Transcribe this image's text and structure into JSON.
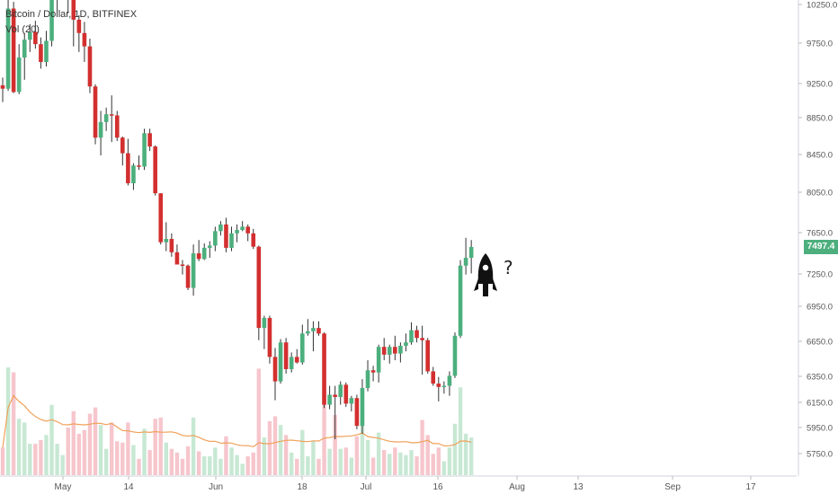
{
  "legend": {
    "symbol": "Bitcoin / Dollar, 1D, BITFINEX",
    "indicator": "Vol (20)"
  },
  "last_price_label": "7497.4",
  "annotation": {
    "rocket_icon": "rocket-icon",
    "text": "?"
  },
  "colors": {
    "up": "#4caf7d",
    "down": "#d32f2f",
    "vol_up": "#c7e8d3",
    "vol_down": "#f6c6cc",
    "vol_ma": "#f0a15a",
    "axis_text": "#555555",
    "price_tag": "#4caf7d"
  },
  "chart_data": {
    "type": "candlestick",
    "title": "Bitcoin / Dollar, 1D, BITFINEX",
    "y_axis_ticks": [
      "10250.0",
      "9750.0",
      "9250.0",
      "8850.0",
      "8450.0",
      "8050.0",
      "7650.0",
      "7250.0",
      "6950.0",
      "6650.0",
      "6350.0",
      "6150.0",
      "5950.0",
      "5750.0"
    ],
    "x_axis_ticks": [
      "May",
      "14",
      "Jun",
      "18",
      "Jul",
      "16",
      "Aug",
      "13",
      "Sep",
      "17"
    ],
    "last_price": 7497.4,
    "volume_indicator": "Vol (20)",
    "candles": [
      {
        "date": "Apr 24",
        "open": 8950,
        "high": 9020,
        "low": 8800,
        "close": 8920
      },
      {
        "date": "Apr 25",
        "open": 8920,
        "high": 9760,
        "low": 8900,
        "close": 9640
      },
      {
        "date": "Apr 26",
        "open": 9640,
        "high": 9700,
        "low": 8880,
        "close": 8890
      },
      {
        "date": "Apr 27",
        "open": 8890,
        "high": 9320,
        "low": 8870,
        "close": 9200
      },
      {
        "date": "Apr 28",
        "open": 9200,
        "high": 9420,
        "low": 9000,
        "close": 9360
      },
      {
        "date": "Apr 29",
        "open": 9360,
        "high": 9500,
        "low": 9250,
        "close": 9430
      },
      {
        "date": "Apr 30",
        "open": 9430,
        "high": 9530,
        "low": 9280,
        "close": 9320
      },
      {
        "date": "May 1",
        "open": 9320,
        "high": 9380,
        "low": 9100,
        "close": 9160
      },
      {
        "date": "May 2",
        "open": 9160,
        "high": 9440,
        "low": 9120,
        "close": 9350
      },
      {
        "date": "May 3",
        "open": 9350,
        "high": 9860,
        "low": 9300,
        "close": 9760
      },
      {
        "date": "May 4",
        "open": 9760,
        "high": 9870,
        "low": 9620,
        "close": 9830
      },
      {
        "date": "May 5",
        "open": 9830,
        "high": 9960,
        "low": 9800,
        "close": 9950
      },
      {
        "date": "May 6",
        "open": 9950,
        "high": 9980,
        "low": 9600,
        "close": 9800
      },
      {
        "date": "May 7",
        "open": 9800,
        "high": 9810,
        "low": 9300,
        "close": 9540
      },
      {
        "date": "May 8",
        "open": 9540,
        "high": 9580,
        "low": 9250,
        "close": 9420
      },
      {
        "date": "May 9",
        "open": 9420,
        "high": 9520,
        "low": 9160,
        "close": 9300
      },
      {
        "date": "May 10",
        "open": 9300,
        "high": 9370,
        "low": 8880,
        "close": 8940
      },
      {
        "date": "May 11",
        "open": 8940,
        "high": 8960,
        "low": 8420,
        "close": 8480
      },
      {
        "date": "May 12",
        "open": 8480,
        "high": 8720,
        "low": 8320,
        "close": 8620
      },
      {
        "date": "May 13",
        "open": 8620,
        "high": 8750,
        "low": 8540,
        "close": 8690
      },
      {
        "date": "May 14",
        "open": 8690,
        "high": 8860,
        "low": 8440,
        "close": 8680
      },
      {
        "date": "May 15",
        "open": 8680,
        "high": 8720,
        "low": 8450,
        "close": 8480
      },
      {
        "date": "May 16",
        "open": 8480,
        "high": 8490,
        "low": 8230,
        "close": 8340
      },
      {
        "date": "May 17",
        "open": 8340,
        "high": 8470,
        "low": 8050,
        "close": 8070
      },
      {
        "date": "May 18",
        "open": 8070,
        "high": 8250,
        "low": 8010,
        "close": 8230
      },
      {
        "date": "May 19",
        "open": 8230,
        "high": 8320,
        "low": 8190,
        "close": 8220
      },
      {
        "date": "May 20",
        "open": 8220,
        "high": 8560,
        "low": 8190,
        "close": 8520
      },
      {
        "date": "May 21",
        "open": 8520,
        "high": 8560,
        "low": 8360,
        "close": 8400
      },
      {
        "date": "May 22",
        "open": 8400,
        "high": 8410,
        "low": 7960,
        "close": 7980
      },
      {
        "date": "May 23",
        "open": 7980,
        "high": 7980,
        "low": 7520,
        "close": 7540
      },
      {
        "date": "May 24",
        "open": 7540,
        "high": 7720,
        "low": 7460,
        "close": 7570
      },
      {
        "date": "May 25",
        "open": 7570,
        "high": 7620,
        "low": 7410,
        "close": 7450
      },
      {
        "date": "May 26",
        "open": 7450,
        "high": 7520,
        "low": 7340,
        "close": 7340
      },
      {
        "date": "May 27",
        "open": 7340,
        "high": 7380,
        "low": 7250,
        "close": 7330
      },
      {
        "date": "May 28",
        "open": 7330,
        "high": 7340,
        "low": 7110,
        "close": 7130
      },
      {
        "date": "May 29",
        "open": 7130,
        "high": 7520,
        "low": 7060,
        "close": 7440
      },
      {
        "date": "May 30",
        "open": 7440,
        "high": 7560,
        "low": 7370,
        "close": 7390
      },
      {
        "date": "May 31",
        "open": 7390,
        "high": 7530,
        "low": 7380,
        "close": 7490
      },
      {
        "date": "Jun 1",
        "open": 7490,
        "high": 7550,
        "low": 7400,
        "close": 7510
      },
      {
        "date": "Jun 2",
        "open": 7510,
        "high": 7680,
        "low": 7460,
        "close": 7640
      },
      {
        "date": "Jun 3",
        "open": 7640,
        "high": 7730,
        "low": 7600,
        "close": 7700
      },
      {
        "date": "Jun 4",
        "open": 7700,
        "high": 7760,
        "low": 7450,
        "close": 7490
      },
      {
        "date": "Jun 5",
        "open": 7490,
        "high": 7680,
        "low": 7460,
        "close": 7620
      },
      {
        "date": "Jun 6",
        "open": 7620,
        "high": 7700,
        "low": 7540,
        "close": 7650
      },
      {
        "date": "Jun 7",
        "open": 7650,
        "high": 7730,
        "low": 7640,
        "close": 7680
      },
      {
        "date": "Jun 8",
        "open": 7680,
        "high": 7700,
        "low": 7550,
        "close": 7620
      },
      {
        "date": "Jun 9",
        "open": 7620,
        "high": 7660,
        "low": 7480,
        "close": 7500
      },
      {
        "date": "Jun 10",
        "open": 7500,
        "high": 7510,
        "low": 6660,
        "close": 6770
      },
      {
        "date": "Jun 11",
        "open": 6770,
        "high": 6880,
        "low": 6580,
        "close": 6860
      },
      {
        "date": "Jun 12",
        "open": 6860,
        "high": 6880,
        "low": 6450,
        "close": 6510
      },
      {
        "date": "Jun 13",
        "open": 6510,
        "high": 6590,
        "low": 6120,
        "close": 6290
      },
      {
        "date": "Jun 14",
        "open": 6290,
        "high": 6670,
        "low": 6270,
        "close": 6640
      },
      {
        "date": "Jun 15",
        "open": 6640,
        "high": 6680,
        "low": 6360,
        "close": 6400
      },
      {
        "date": "Jun 16",
        "open": 6400,
        "high": 6550,
        "low": 6370,
        "close": 6510
      },
      {
        "date": "Jun 17",
        "open": 6510,
        "high": 6580,
        "low": 6450,
        "close": 6460
      },
      {
        "date": "Jun 18",
        "open": 6460,
        "high": 6800,
        "low": 6440,
        "close": 6720
      },
      {
        "date": "Jun 19",
        "open": 6720,
        "high": 6850,
        "low": 6700,
        "close": 6740
      },
      {
        "date": "Jun 20",
        "open": 6740,
        "high": 6830,
        "low": 6560,
        "close": 6770
      },
      {
        "date": "Jun 21",
        "open": 6770,
        "high": 6830,
        "low": 6700,
        "close": 6720
      },
      {
        "date": "Jun 22",
        "open": 6720,
        "high": 6730,
        "low": 6050,
        "close": 6080
      },
      {
        "date": "Jun 23",
        "open": 6080,
        "high": 6250,
        "low": 6040,
        "close": 6170
      },
      {
        "date": "Jun 24",
        "open": 6170,
        "high": 6250,
        "low": 5770,
        "close": 6150
      },
      {
        "date": "Jun 25",
        "open": 6150,
        "high": 6290,
        "low": 6080,
        "close": 6260
      },
      {
        "date": "Jun 26",
        "open": 6260,
        "high": 6280,
        "low": 6060,
        "close": 6090
      },
      {
        "date": "Jun 27",
        "open": 6090,
        "high": 6160,
        "low": 6020,
        "close": 6140
      },
      {
        "date": "Jun 28",
        "open": 6140,
        "high": 6170,
        "low": 5860,
        "close": 5890
      },
      {
        "date": "Jun 29",
        "open": 5890,
        "high": 6310,
        "low": 5820,
        "close": 6230
      },
      {
        "date": "Jun 30",
        "open": 6230,
        "high": 6480,
        "low": 6200,
        "close": 6390
      },
      {
        "date": "Jul 1",
        "open": 6390,
        "high": 6430,
        "low": 6290,
        "close": 6370
      },
      {
        "date": "Jul 2",
        "open": 6370,
        "high": 6620,
        "low": 6280,
        "close": 6600
      },
      {
        "date": "Jul 3",
        "open": 6600,
        "high": 6680,
        "low": 6480,
        "close": 6530
      },
      {
        "date": "Jul 4",
        "open": 6530,
        "high": 6620,
        "low": 6450,
        "close": 6600
      },
      {
        "date": "Jul 5",
        "open": 6600,
        "high": 6700,
        "low": 6480,
        "close": 6540
      },
      {
        "date": "Jul 6",
        "open": 6540,
        "high": 6640,
        "low": 6460,
        "close": 6610
      },
      {
        "date": "Jul 7",
        "open": 6610,
        "high": 6720,
        "low": 6560,
        "close": 6640
      },
      {
        "date": "Jul 8",
        "open": 6640,
        "high": 6820,
        "low": 6620,
        "close": 6750
      },
      {
        "date": "Jul 9",
        "open": 6750,
        "high": 6790,
        "low": 6640,
        "close": 6680
      },
      {
        "date": "Jul 10",
        "open": 6680,
        "high": 6790,
        "low": 6350,
        "close": 6660
      },
      {
        "date": "Jul 11",
        "open": 6660,
        "high": 6680,
        "low": 6360,
        "close": 6380
      },
      {
        "date": "Jul 12",
        "open": 6380,
        "high": 6420,
        "low": 6250,
        "close": 6270
      },
      {
        "date": "Jul 13",
        "open": 6270,
        "high": 6330,
        "low": 6110,
        "close": 6240
      },
      {
        "date": "Jul 14",
        "open": 6240,
        "high": 6290,
        "low": 6180,
        "close": 6250
      },
      {
        "date": "Jul 15",
        "open": 6250,
        "high": 6380,
        "low": 6160,
        "close": 6340
      },
      {
        "date": "Jul 16",
        "open": 6340,
        "high": 6730,
        "low": 6320,
        "close": 6700
      },
      {
        "date": "Jul 17",
        "open": 6700,
        "high": 7380,
        "low": 6680,
        "close": 7330
      },
      {
        "date": "Jul 18",
        "open": 7330,
        "high": 7580,
        "low": 7250,
        "close": 7400
      },
      {
        "date": "Jul 19",
        "open": 7400,
        "high": 7560,
        "low": 7260,
        "close": 7497.4
      }
    ]
  }
}
